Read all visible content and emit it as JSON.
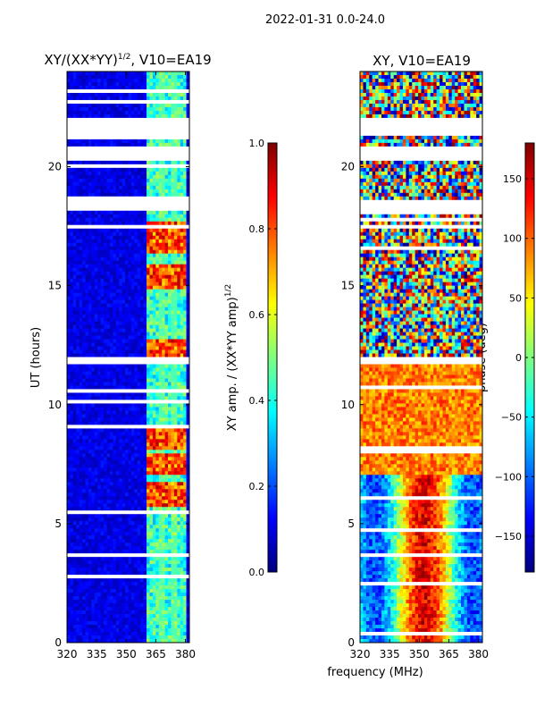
{
  "header": {
    "title": "2022-01-31 0.0-24.0"
  },
  "shared": {
    "xlabel": "frequency (MHz)"
  },
  "chart_data": [
    {
      "type": "heatmap",
      "id": "amp",
      "title_text": "XY/(XX*YY)",
      "title_sup": "1/2",
      "title_tail": ", V10=EA19",
      "ylabel": "UT (hours)",
      "xlim": [
        320,
        382
      ],
      "ylim": [
        0,
        24
      ],
      "xticks": [
        320,
        335,
        350,
        365,
        380
      ],
      "yticks": [
        0,
        5,
        10,
        15,
        20
      ],
      "colorbar": {
        "label_text": "XY amp. / (XX*YY amp)",
        "label_sup": "1/2",
        "range": [
          0.0,
          1.0
        ],
        "ticks": [
          0.0,
          0.2,
          0.4,
          0.6,
          0.8,
          1.0
        ],
        "tick_labels": [
          "0.0",
          "0.2",
          "0.4",
          "0.6",
          "0.8",
          "1.0"
        ],
        "colormap": "jet"
      },
      "gaps_hours": [
        [
          3.55,
          3.75
        ],
        [
          11.75,
          11.95
        ],
        [
          17.45,
          17.55
        ],
        [
          18.1,
          18.55
        ],
        [
          20.2,
          20.8
        ],
        [
          21.3,
          22.1
        ],
        [
          23.1,
          23.3
        ]
      ],
      "bright_band_mhz": [
        361,
        381
      ],
      "peak_hours": [
        6.2,
        7.5,
        8.6,
        12.3,
        15.4,
        16.8,
        17.2
      ]
    },
    {
      "type": "heatmap",
      "id": "phase",
      "title_text": "XY, V10=EA19",
      "ylabel": "",
      "xlim": [
        320,
        382
      ],
      "ylim": [
        0,
        24
      ],
      "xticks": [
        320,
        335,
        350,
        365,
        380
      ],
      "yticks": [
        0,
        5,
        10,
        15,
        20
      ],
      "colorbar": {
        "label_text": "phase (deg)",
        "range": [
          -180,
          180
        ],
        "ticks": [
          -150,
          -100,
          -50,
          0,
          50,
          100,
          150
        ],
        "tick_labels": [
          "−150",
          "−100",
          "−50",
          "0",
          "50",
          "100",
          "150"
        ],
        "colormap": "jet"
      },
      "gaps_hours": [
        [
          3.55,
          3.75
        ],
        [
          11.75,
          11.95
        ],
        [
          17.45,
          17.55
        ],
        [
          18.1,
          18.55
        ],
        [
          20.2,
          20.8
        ],
        [
          21.3,
          22.1
        ]
      ]
    }
  ]
}
